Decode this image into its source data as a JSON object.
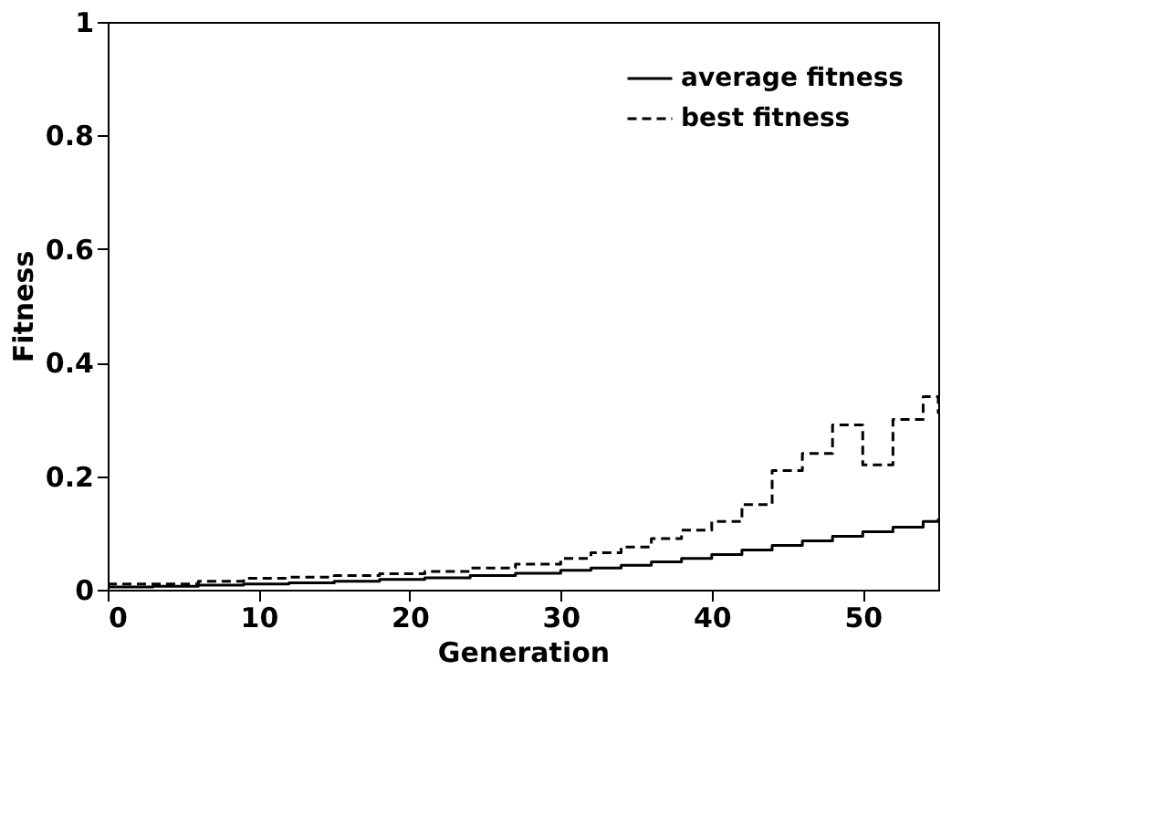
{
  "chart_data": {
    "type": "step",
    "xlabel": "Generation",
    "ylabel": "Fitness",
    "x": [
      0,
      3,
      6,
      9,
      12,
      15,
      18,
      21,
      24,
      27,
      30,
      32,
      34,
      36,
      38,
      40,
      42,
      44,
      46,
      48,
      50,
      52,
      54,
      55
    ],
    "series": [
      {
        "name": "average fitness",
        "color": "#000000",
        "line_style": "solid",
        "values": [
          0.005,
          0.006,
          0.008,
          0.01,
          0.012,
          0.015,
          0.018,
          0.021,
          0.025,
          0.029,
          0.034,
          0.038,
          0.043,
          0.049,
          0.055,
          0.062,
          0.07,
          0.078,
          0.086,
          0.094,
          0.102,
          0.11,
          0.12,
          0.125
        ]
      },
      {
        "name": "best fitness",
        "color": "#000000",
        "line_style": "dashed",
        "values": [
          0.01,
          0.01,
          0.015,
          0.02,
          0.022,
          0.025,
          0.028,
          0.032,
          0.038,
          0.045,
          0.055,
          0.065,
          0.075,
          0.09,
          0.105,
          0.12,
          0.15,
          0.21,
          0.24,
          0.29,
          0.22,
          0.3,
          0.34,
          0.31
        ]
      }
    ],
    "xlim": [
      0,
      55
    ],
    "xticks": [
      0,
      10,
      20,
      30,
      40,
      50
    ],
    "ylim": [
      0,
      1
    ],
    "yticks": [
      0,
      0.2,
      0.4,
      0.6,
      0.8,
      1
    ],
    "grid": false,
    "legend": "top right"
  }
}
